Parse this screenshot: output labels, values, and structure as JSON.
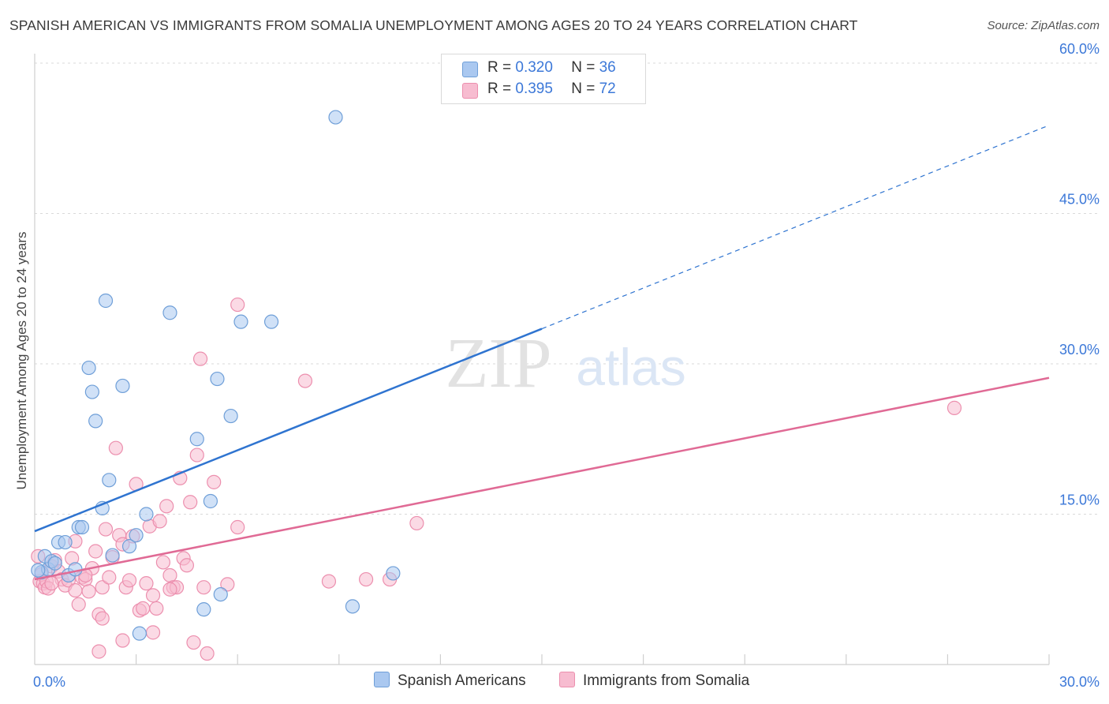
{
  "header": {
    "title": "SPANISH AMERICAN VS IMMIGRANTS FROM SOMALIA UNEMPLOYMENT AMONG AGES 20 TO 24 YEARS CORRELATION CHART",
    "source": "Source: ZipAtlas.com"
  },
  "watermark": {
    "zip": "ZIP",
    "atlas": "atlas"
  },
  "legend_top": {
    "rows": [
      {
        "r_label": "R = ",
        "r_value": "0.320",
        "n_label": "N = ",
        "n_value": "36"
      },
      {
        "r_label": "R = ",
        "r_value": "0.395",
        "n_label": "N = ",
        "n_value": "72"
      }
    ]
  },
  "legend_bottom": {
    "series1": "Spanish Americans",
    "series2": "Immigrants from Somalia"
  },
  "colors": {
    "blue_fill": "#aac8f0",
    "blue_stroke": "#6f9fd8",
    "blue_line": "#2f74d0",
    "pink_fill": "#f7bcd0",
    "pink_stroke": "#ec8fae",
    "pink_line": "#e06a95",
    "tick_text": "#3c78d8",
    "grid": "#d9d9d9"
  },
  "chart_data": {
    "type": "scatter",
    "title": "SPANISH AMERICAN VS IMMIGRANTS FROM SOMALIA UNEMPLOYMENT AMONG AGES 20 TO 24 YEARS CORRELATION CHART",
    "xlabel": "",
    "ylabel": "Unemployment Among Ages 20 to 24 years",
    "xlim": [
      0,
      30
    ],
    "ylim": [
      0,
      60
    ],
    "x_tick_labels": [
      "0.0%",
      "30.0%"
    ],
    "y_ticks": [
      15,
      30,
      45,
      60
    ],
    "y_tick_labels": [
      "15.0%",
      "30.0%",
      "45.0%",
      "60.0%"
    ],
    "grid": true,
    "series": [
      {
        "name": "Spanish Americans",
        "r": 0.32,
        "n": 36,
        "trend": {
          "x0": 0,
          "y0": 13.3,
          "x1": 15,
          "y1": 33.5,
          "dash_to_x": 30,
          "dash_to_y": 53.8
        },
        "points": [
          [
            0.2,
            9.2
          ],
          [
            0.3,
            10.8
          ],
          [
            0.4,
            9.5
          ],
          [
            0.5,
            10.3
          ],
          [
            0.6,
            10.1
          ],
          [
            0.7,
            12.2
          ],
          [
            0.9,
            12.2
          ],
          [
            1.0,
            8.9
          ],
          [
            1.2,
            9.5
          ],
          [
            1.3,
            13.7
          ],
          [
            1.4,
            13.7
          ],
          [
            1.6,
            29.6
          ],
          [
            1.7,
            27.2
          ],
          [
            1.8,
            24.3
          ],
          [
            2.0,
            15.6
          ],
          [
            2.1,
            36.3
          ],
          [
            2.2,
            18.4
          ],
          [
            2.3,
            10.9
          ],
          [
            2.6,
            27.8
          ],
          [
            2.8,
            11.8
          ],
          [
            3.0,
            12.9
          ],
          [
            3.1,
            3.1
          ],
          [
            3.3,
            15.0
          ],
          [
            4.0,
            35.1
          ],
          [
            4.8,
            22.5
          ],
          [
            5.0,
            5.5
          ],
          [
            5.2,
            16.3
          ],
          [
            5.4,
            28.5
          ],
          [
            5.5,
            7.0
          ],
          [
            5.8,
            24.8
          ],
          [
            6.1,
            34.2
          ],
          [
            7.0,
            34.2
          ],
          [
            8.9,
            54.6
          ],
          [
            9.4,
            5.8
          ],
          [
            10.6,
            9.1
          ],
          [
            0.1,
            9.4
          ]
        ]
      },
      {
        "name": "Immigrants from Somalia",
        "r": 0.395,
        "n": 72,
        "trend": {
          "x0": 0,
          "y0": 8.5,
          "x1": 30,
          "y1": 28.6
        },
        "points": [
          [
            0.1,
            10.8
          ],
          [
            0.15,
            8.3
          ],
          [
            0.2,
            9.0
          ],
          [
            0.25,
            8.1
          ],
          [
            0.3,
            7.7
          ],
          [
            0.35,
            8.3
          ],
          [
            0.4,
            7.6
          ],
          [
            0.5,
            9.8
          ],
          [
            0.6,
            10.4
          ],
          [
            0.7,
            9.3
          ],
          [
            0.8,
            8.5
          ],
          [
            0.9,
            7.9
          ],
          [
            1.0,
            8.4
          ],
          [
            1.1,
            10.6
          ],
          [
            1.2,
            12.3
          ],
          [
            1.3,
            6.0
          ],
          [
            1.4,
            8.7
          ],
          [
            1.5,
            8.5
          ],
          [
            1.6,
            7.3
          ],
          [
            1.7,
            9.6
          ],
          [
            1.8,
            11.3
          ],
          [
            1.9,
            5.0
          ],
          [
            2.0,
            7.7
          ],
          [
            2.1,
            13.5
          ],
          [
            2.2,
            8.7
          ],
          [
            2.3,
            10.7
          ],
          [
            2.4,
            21.6
          ],
          [
            2.5,
            12.9
          ],
          [
            2.6,
            12.0
          ],
          [
            2.7,
            7.7
          ],
          [
            2.8,
            8.4
          ],
          [
            2.9,
            12.8
          ],
          [
            3.0,
            18.0
          ],
          [
            3.1,
            5.4
          ],
          [
            3.2,
            5.6
          ],
          [
            3.3,
            8.1
          ],
          [
            3.4,
            13.8
          ],
          [
            3.5,
            3.2
          ],
          [
            3.6,
            5.6
          ],
          [
            3.7,
            14.3
          ],
          [
            3.8,
            10.2
          ],
          [
            3.9,
            15.8
          ],
          [
            4.0,
            8.9
          ],
          [
            4.1,
            7.7
          ],
          [
            4.2,
            7.7
          ],
          [
            4.3,
            18.6
          ],
          [
            4.4,
            10.6
          ],
          [
            4.5,
            9.9
          ],
          [
            4.6,
            16.2
          ],
          [
            4.7,
            2.2
          ],
          [
            4.8,
            20.9
          ],
          [
            4.9,
            30.5
          ],
          [
            5.0,
            7.7
          ],
          [
            5.1,
            1.1
          ],
          [
            5.3,
            18.2
          ],
          [
            5.7,
            8.0
          ],
          [
            6.0,
            13.7
          ],
          [
            6.0,
            35.9
          ],
          [
            8.0,
            28.3
          ],
          [
            8.7,
            8.3
          ],
          [
            9.8,
            8.5
          ],
          [
            10.5,
            8.5
          ],
          [
            11.3,
            14.1
          ],
          [
            27.2,
            25.6
          ],
          [
            1.9,
            1.3
          ],
          [
            2.6,
            2.4
          ],
          [
            0.5,
            8.1
          ],
          [
            1.5,
            8.9
          ],
          [
            3.5,
            6.9
          ],
          [
            4.0,
            7.5
          ],
          [
            2.0,
            4.6
          ],
          [
            1.2,
            7.4
          ]
        ]
      }
    ]
  }
}
